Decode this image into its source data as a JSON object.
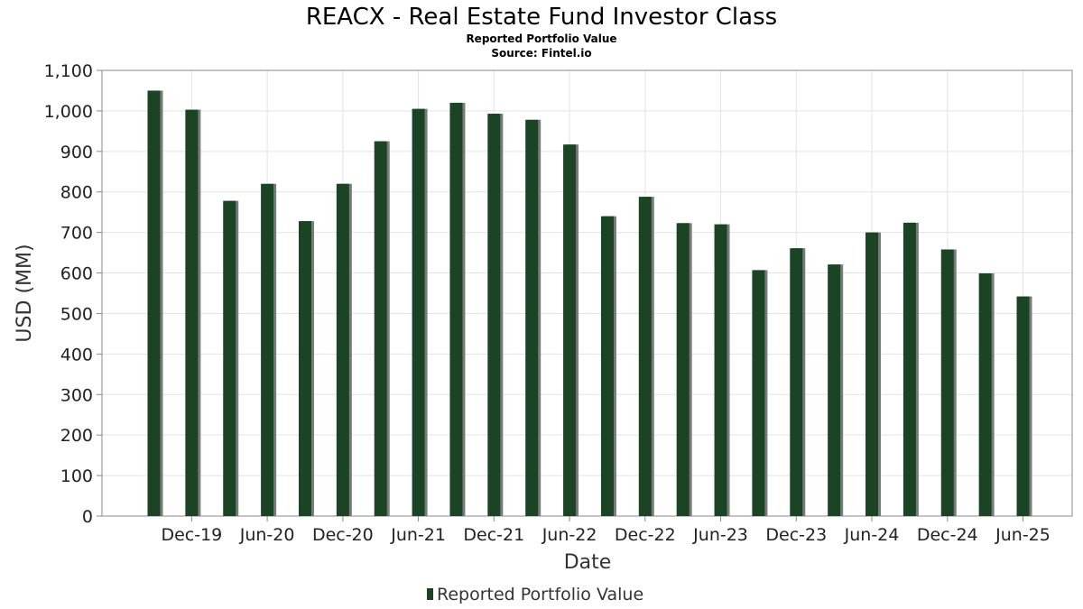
{
  "chart_data": {
    "type": "bar",
    "title": "REACX - Real Estate Fund Investor Class",
    "subtitle": "Reported Portfolio Value",
    "source": "Source: Fintel.io",
    "xlabel": "Date",
    "ylabel": "USD (MM)",
    "ylim": [
      0,
      1100
    ],
    "yticks": [
      0,
      100,
      200,
      300,
      400,
      500,
      600,
      700,
      800,
      900,
      1000,
      1100
    ],
    "ytick_labels": [
      "0",
      "100",
      "200",
      "300",
      "400",
      "500",
      "600",
      "700",
      "800",
      "900",
      "1,000",
      "1,100"
    ],
    "xtick_labels": [
      "Dec-19",
      "Jun-20",
      "Dec-20",
      "Jun-21",
      "Dec-21",
      "Jun-22",
      "Dec-22",
      "Jun-23",
      "Dec-23",
      "Jun-24",
      "Dec-24",
      "Jun-25"
    ],
    "grid": true,
    "legend_position": "bottom-center",
    "series": [
      {
        "name": "Reported Portfolio Value",
        "color": "#1a4423",
        "values": [
          1050,
          1003,
          778,
          820,
          728,
          820,
          925,
          1005,
          1020,
          993,
          978,
          917,
          740,
          788,
          723,
          720,
          607,
          661,
          621,
          700,
          724,
          658,
          599,
          542
        ]
      }
    ]
  }
}
